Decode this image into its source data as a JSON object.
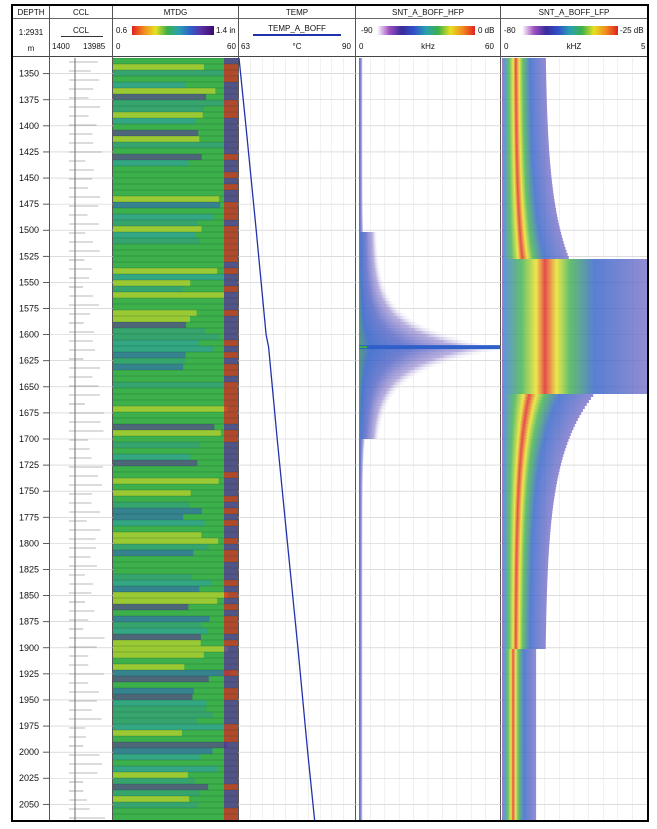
{
  "header": {
    "depth": {
      "title": "DEPTH",
      "scale": "1:2931",
      "unit": "m"
    },
    "ccl": {
      "title": "CCL",
      "curve": "CCL",
      "min": "1400",
      "max": "13985"
    },
    "mtdg": {
      "title": "MTDG",
      "min": "0.6",
      "max": "1.4 in",
      "axis_min": "0",
      "axis_max": "60"
    },
    "temp": {
      "title": "TEMP",
      "curve": "TEMP_A_BOFF",
      "min": "63",
      "unit": "°C",
      "max": "90"
    },
    "hfp": {
      "title": "SNT_A_BOFF_HFP",
      "min": "-90",
      "max": "0 dB",
      "axis_min": "0",
      "unit": "kHz",
      "axis_max": "60"
    },
    "lfp": {
      "title": "SNT_A_BOFF_LFP",
      "min": "-80",
      "max": "-25 dB",
      "axis_min": "0",
      "unit": "kHZ",
      "axis_max": "5"
    }
  },
  "colors": {
    "temp_line": "#2233aa",
    "rainbow": [
      "#3a0a6e",
      "#5b2ca0",
      "#2f5fc8",
      "#2aa0b0",
      "#3cb04a",
      "#e8e020",
      "#f08a20",
      "#e02020"
    ]
  },
  "chart_data": {
    "type": "line",
    "xlabel": "TEMP_A_BOFF (°C)",
    "ylabel": "DEPTH (m)",
    "xlim": [
      63,
      90
    ],
    "ylim": [
      1335,
      2065
    ],
    "depth_ticks": [
      1350,
      1375,
      1400,
      1425,
      1450,
      1475,
      1500,
      1525,
      1550,
      1575,
      1600,
      1625,
      1650,
      1675,
      1700,
      1725,
      1750,
      1775,
      1800,
      1825,
      1850,
      1875,
      1900,
      1925,
      1950,
      1975,
      2000,
      2025,
      2050
    ],
    "series": [
      {
        "name": "TEMP_A_BOFF",
        "points": [
          {
            "depth": 1335,
            "temp": 63.0
          },
          {
            "depth": 1400,
            "temp": 64.6
          },
          {
            "depth": 1500,
            "temp": 67.0
          },
          {
            "depth": 1600,
            "temp": 69.3
          },
          {
            "depth": 1612,
            "temp": 69.9
          },
          {
            "depth": 1700,
            "temp": 71.9
          },
          {
            "depth": 1800,
            "temp": 74.3
          },
          {
            "depth": 1900,
            "temp": 76.7
          },
          {
            "depth": 2000,
            "temp": 79.0
          },
          {
            "depth": 2065,
            "temp": 80.6
          }
        ]
      }
    ],
    "annotations": [
      {
        "track": "SNT_A_BOFF_HFP",
        "depth": 1612,
        "text": ""
      }
    ]
  }
}
